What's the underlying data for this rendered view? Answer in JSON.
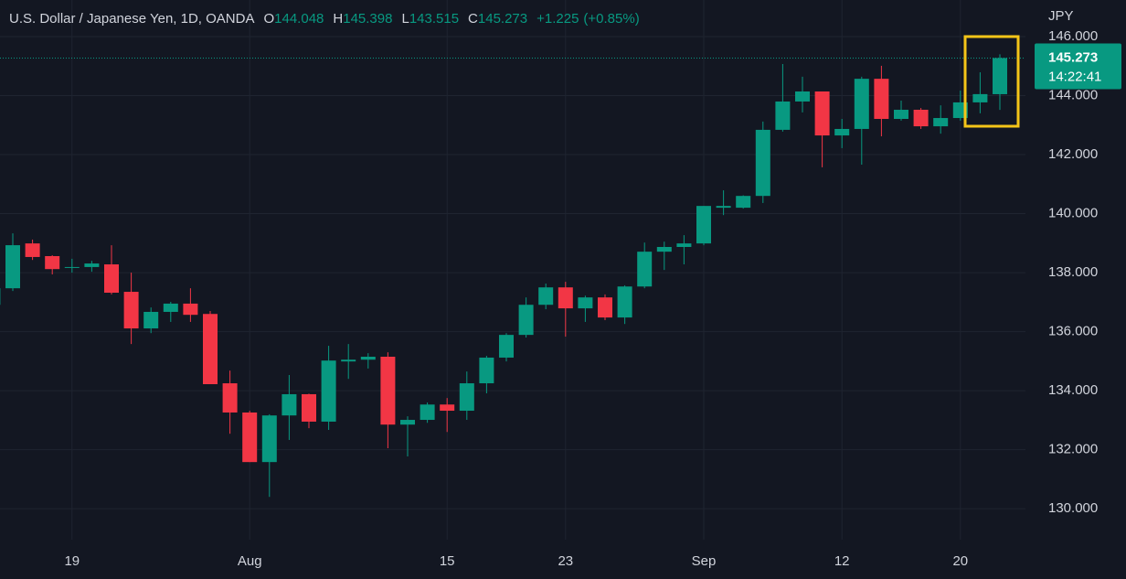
{
  "chart_data": {
    "type": "candlestick",
    "title": "U.S. Dollar / Japanese Yen, 1D, OANDA",
    "legend_ohlc": [
      {
        "key": "O",
        "value": 144.048
      },
      {
        "key": "H",
        "value": 145.398
      },
      {
        "key": "L",
        "value": 143.515
      },
      {
        "key": "C",
        "value": 145.273
      }
    ],
    "change": {
      "value": 1.225,
      "label": "+1.225"
    },
    "change_percent": {
      "value": 0.85,
      "label": "(+0.85%)"
    },
    "y_axis_unit": "JPY",
    "last_price": 145.273,
    "countdown": "14:22:41",
    "up_color": "#089981",
    "down_color": "#f23645",
    "highlight_color": "#f5c518",
    "grid": true,
    "categories": [
      null,
      null,
      null,
      null,
      "19",
      null,
      null,
      null,
      null,
      null,
      null,
      null,
      null,
      "Aug",
      null,
      null,
      null,
      null,
      null,
      null,
      null,
      null,
      null,
      "15",
      null,
      null,
      null,
      null,
      null,
      "23",
      null,
      null,
      null,
      null,
      null,
      null,
      "Sep",
      null,
      null,
      null,
      null,
      null,
      null,
      "12",
      null,
      null,
      null,
      null,
      null,
      "20",
      null,
      null
    ],
    "open": [
      136.91,
      137.47,
      138.99,
      138.56,
      138.16,
      138.19,
      138.28,
      137.35,
      136.11,
      136.67,
      136.95,
      136.6,
      134.25,
      133.26,
      131.58,
      133.16,
      133.88,
      132.95,
      134.99,
      135.05,
      135.15,
      132.85,
      133.01,
      133.53,
      133.32,
      134.25,
      135.12,
      135.89,
      136.91,
      137.5,
      136.79,
      137.16,
      136.48,
      137.53,
      138.71,
      138.87,
      138.99,
      140.2,
      140.2,
      140.6,
      142.84,
      143.8,
      144.14,
      142.65,
      142.87,
      144.57,
      143.21,
      143.52,
      142.96,
      143.24,
      143.77,
      144.048
    ],
    "high": [
      137.63,
      139.33,
      139.12,
      138.59,
      138.47,
      138.4,
      138.93,
      138.0,
      136.82,
      137.01,
      137.47,
      136.7,
      134.68,
      133.32,
      133.2,
      134.53,
      133.9,
      135.52,
      135.58,
      135.27,
      135.3,
      133.13,
      133.6,
      133.75,
      134.65,
      135.18,
      135.95,
      137.16,
      137.63,
      137.69,
      137.22,
      137.26,
      137.57,
      139.02,
      139.05,
      139.27,
      140.26,
      140.79,
      140.62,
      143.12,
      145.07,
      144.64,
      144.14,
      143.21,
      144.64,
      145.01,
      143.83,
      143.58,
      143.67,
      144.17,
      144.79,
      145.398
    ],
    "low": [
      136.85,
      137.38,
      138.43,
      137.94,
      138.0,
      138.03,
      137.26,
      135.58,
      135.95,
      136.33,
      136.33,
      134.22,
      132.54,
      131.58,
      130.4,
      132.33,
      132.73,
      132.67,
      134.4,
      134.75,
      132.05,
      131.77,
      132.91,
      132.6,
      133.01,
      133.91,
      134.99,
      135.8,
      136.76,
      135.83,
      136.33,
      136.39,
      136.26,
      137.47,
      138.09,
      138.28,
      138.93,
      139.95,
      140.17,
      140.36,
      142.78,
      143.43,
      141.57,
      142.22,
      141.66,
      142.62,
      143.15,
      142.87,
      142.71,
      143.15,
      143.4,
      143.515
    ],
    "close": [
      137.47,
      138.93,
      138.53,
      138.12,
      138.19,
      138.31,
      137.32,
      136.11,
      136.67,
      136.95,
      136.57,
      134.22,
      133.26,
      131.58,
      133.16,
      133.88,
      132.95,
      135.02,
      135.05,
      135.15,
      132.85,
      133.01,
      133.53,
      133.32,
      134.25,
      135.12,
      135.89,
      136.91,
      137.5,
      136.79,
      137.16,
      136.48,
      137.53,
      138.71,
      138.87,
      138.99,
      140.26,
      140.26,
      140.6,
      142.84,
      143.8,
      144.14,
      142.65,
      142.87,
      144.57,
      143.21,
      143.52,
      142.96,
      143.24,
      143.77,
      144.05,
      145.273
    ],
    "ylim": [
      128.95,
      147.24
    ],
    "yticks": [
      {
        "value": 130,
        "label": "130.000"
      },
      {
        "value": 132,
        "label": "132.000"
      },
      {
        "value": 134,
        "label": "134.000"
      },
      {
        "value": 136,
        "label": "136.000"
      },
      {
        "value": 138,
        "label": "138.000"
      },
      {
        "value": 140,
        "label": "140.000"
      },
      {
        "value": 142,
        "label": "142.000"
      },
      {
        "value": 144,
        "label": "144.000"
      },
      {
        "value": 146,
        "label": "146.000"
      }
    ]
  }
}
